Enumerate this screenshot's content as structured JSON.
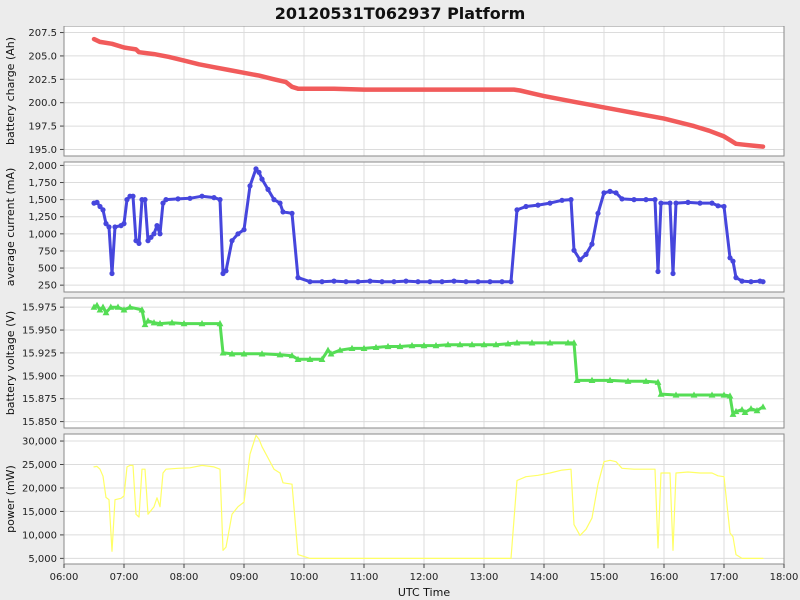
{
  "title": "20120531T062937 Platform",
  "figure": {
    "bg": "#ececec",
    "plot_bg": "#ffffff",
    "grid_color": "#dcdcdc",
    "border_color": "#8a8a8a",
    "tick_color": "#444444"
  },
  "x_axis": {
    "label": "UTC Time",
    "range": [
      6,
      18
    ],
    "tick_values": [
      6,
      7,
      8,
      9,
      10,
      11,
      12,
      13,
      14,
      15,
      16,
      17,
      18
    ],
    "tick_labels": [
      "06:00",
      "07:00",
      "08:00",
      "09:00",
      "10:00",
      "11:00",
      "12:00",
      "13:00",
      "14:00",
      "15:00",
      "16:00",
      "17:00",
      "18:00"
    ]
  },
  "chart_data": [
    {
      "type": "line",
      "name": "battery-charge",
      "ylabel": "battery charge (Ah)",
      "color": "#f15b5b",
      "line_width": 4.5,
      "marker": "none",
      "ylim": [
        194.3,
        208.2
      ],
      "ytick_values": [
        195.0,
        197.5,
        200.0,
        202.5,
        205.0,
        207.5
      ],
      "ytick_labels": [
        "195.0",
        "197.5",
        "200.0",
        "202.5",
        "205.0",
        "207.5"
      ],
      "points": [
        [
          6.5,
          206.8
        ],
        [
          6.6,
          206.5
        ],
        [
          6.8,
          206.3
        ],
        [
          7.0,
          205.9
        ],
        [
          7.2,
          205.7
        ],
        [
          7.25,
          205.4
        ],
        [
          7.5,
          205.2
        ],
        [
          7.75,
          204.9
        ],
        [
          8.0,
          204.5
        ],
        [
          8.25,
          204.1
        ],
        [
          8.5,
          203.8
        ],
        [
          8.75,
          203.5
        ],
        [
          9.0,
          203.2
        ],
        [
          9.25,
          202.9
        ],
        [
          9.5,
          202.5
        ],
        [
          9.7,
          202.2
        ],
        [
          9.8,
          201.7
        ],
        [
          9.9,
          201.5
        ],
        [
          10.0,
          201.5
        ],
        [
          10.5,
          201.5
        ],
        [
          11.0,
          201.4
        ],
        [
          11.5,
          201.4
        ],
        [
          12.0,
          201.4
        ],
        [
          12.5,
          201.4
        ],
        [
          13.0,
          201.4
        ],
        [
          13.5,
          201.4
        ],
        [
          13.6,
          201.3
        ],
        [
          13.8,
          201.0
        ],
        [
          14.0,
          200.7
        ],
        [
          14.25,
          200.4
        ],
        [
          14.5,
          200.1
        ],
        [
          14.75,
          199.8
        ],
        [
          15.0,
          199.5
        ],
        [
          15.25,
          199.2
        ],
        [
          15.5,
          198.9
        ],
        [
          15.75,
          198.6
        ],
        [
          16.0,
          198.3
        ],
        [
          16.25,
          197.9
        ],
        [
          16.5,
          197.5
        ],
        [
          16.75,
          197.0
        ],
        [
          17.0,
          196.4
        ],
        [
          17.1,
          196.0
        ],
        [
          17.2,
          195.6
        ],
        [
          17.35,
          195.5
        ],
        [
          17.5,
          195.4
        ],
        [
          17.65,
          195.3
        ]
      ]
    },
    {
      "type": "line",
      "name": "average-current",
      "ylabel": "average current (mA)",
      "color": "#4646dd",
      "line_width": 3,
      "marker": "circle",
      "ylim": [
        150,
        2050
      ],
      "ytick_values": [
        250,
        500,
        750,
        1000,
        1250,
        1500,
        1750,
        2000
      ],
      "ytick_labels": [
        "250",
        "500",
        "750",
        "1,000",
        "1,250",
        "1,500",
        "1,750",
        "2,000"
      ],
      "points": [
        [
          6.5,
          1450
        ],
        [
          6.55,
          1460
        ],
        [
          6.6,
          1400
        ],
        [
          6.65,
          1350
        ],
        [
          6.7,
          1150
        ],
        [
          6.75,
          1100
        ],
        [
          6.8,
          420
        ],
        [
          6.85,
          1100
        ],
        [
          6.95,
          1120
        ],
        [
          7.0,
          1150
        ],
        [
          7.05,
          1500
        ],
        [
          7.1,
          1550
        ],
        [
          7.15,
          1550
        ],
        [
          7.2,
          900
        ],
        [
          7.25,
          860
        ],
        [
          7.3,
          1500
        ],
        [
          7.35,
          1500
        ],
        [
          7.4,
          900
        ],
        [
          7.45,
          950
        ],
        [
          7.5,
          1000
        ],
        [
          7.55,
          1120
        ],
        [
          7.6,
          1000
        ],
        [
          7.65,
          1450
        ],
        [
          7.7,
          1500
        ],
        [
          7.9,
          1510
        ],
        [
          8.1,
          1520
        ],
        [
          8.3,
          1550
        ],
        [
          8.5,
          1530
        ],
        [
          8.6,
          1500
        ],
        [
          8.65,
          420
        ],
        [
          8.7,
          460
        ],
        [
          8.8,
          900
        ],
        [
          8.9,
          1000
        ],
        [
          9.0,
          1060
        ],
        [
          9.1,
          1700
        ],
        [
          9.2,
          1950
        ],
        [
          9.25,
          1900
        ],
        [
          9.3,
          1800
        ],
        [
          9.4,
          1650
        ],
        [
          9.5,
          1500
        ],
        [
          9.6,
          1450
        ],
        [
          9.65,
          1320
        ],
        [
          9.8,
          1300
        ],
        [
          9.9,
          360
        ],
        [
          10.1,
          300
        ],
        [
          10.3,
          300
        ],
        [
          10.5,
          310
        ],
        [
          10.7,
          300
        ],
        [
          10.9,
          300
        ],
        [
          11.1,
          310
        ],
        [
          11.3,
          300
        ],
        [
          11.5,
          300
        ],
        [
          11.7,
          310
        ],
        [
          11.9,
          300
        ],
        [
          12.1,
          300
        ],
        [
          12.3,
          300
        ],
        [
          12.5,
          310
        ],
        [
          12.7,
          300
        ],
        [
          12.9,
          300
        ],
        [
          13.1,
          300
        ],
        [
          13.3,
          300
        ],
        [
          13.45,
          300
        ],
        [
          13.55,
          1350
        ],
        [
          13.7,
          1400
        ],
        [
          13.9,
          1420
        ],
        [
          14.1,
          1450
        ],
        [
          14.3,
          1490
        ],
        [
          14.45,
          1500
        ],
        [
          14.5,
          760
        ],
        [
          14.6,
          620
        ],
        [
          14.7,
          700
        ],
        [
          14.8,
          850
        ],
        [
          14.9,
          1300
        ],
        [
          15.0,
          1600
        ],
        [
          15.1,
          1620
        ],
        [
          15.2,
          1600
        ],
        [
          15.3,
          1510
        ],
        [
          15.5,
          1500
        ],
        [
          15.7,
          1500
        ],
        [
          15.85,
          1500
        ],
        [
          15.9,
          450
        ],
        [
          15.95,
          1450
        ],
        [
          16.1,
          1450
        ],
        [
          16.15,
          420
        ],
        [
          16.2,
          1450
        ],
        [
          16.4,
          1460
        ],
        [
          16.6,
          1450
        ],
        [
          16.8,
          1450
        ],
        [
          16.9,
          1410
        ],
        [
          17.0,
          1400
        ],
        [
          17.1,
          650
        ],
        [
          17.15,
          600
        ],
        [
          17.2,
          360
        ],
        [
          17.3,
          310
        ],
        [
          17.45,
          300
        ],
        [
          17.6,
          310
        ],
        [
          17.65,
          300
        ]
      ]
    },
    {
      "type": "line",
      "name": "battery-voltage",
      "ylabel": "battery voltage (V)",
      "color": "#55dd55",
      "line_width": 3,
      "marker": "triangle",
      "ylim": [
        15.843,
        15.985
      ],
      "ytick_values": [
        15.85,
        15.875,
        15.9,
        15.925,
        15.95,
        15.975
      ],
      "ytick_labels": [
        "15.850",
        "15.875",
        "15.900",
        "15.925",
        "15.950",
        "15.975"
      ],
      "points": [
        [
          6.5,
          15.975
        ],
        [
          6.55,
          15.977
        ],
        [
          6.6,
          15.972
        ],
        [
          6.65,
          15.975
        ],
        [
          6.7,
          15.969
        ],
        [
          6.78,
          15.975
        ],
        [
          6.9,
          15.975
        ],
        [
          7.0,
          15.972
        ],
        [
          7.1,
          15.975
        ],
        [
          7.3,
          15.972
        ],
        [
          7.35,
          15.956
        ],
        [
          7.4,
          15.96
        ],
        [
          7.5,
          15.958
        ],
        [
          7.6,
          15.957
        ],
        [
          7.8,
          15.958
        ],
        [
          8.0,
          15.957
        ],
        [
          8.3,
          15.957
        ],
        [
          8.6,
          15.957
        ],
        [
          8.65,
          15.925
        ],
        [
          8.8,
          15.924
        ],
        [
          9.0,
          15.924
        ],
        [
          9.3,
          15.924
        ],
        [
          9.6,
          15.923
        ],
        [
          9.8,
          15.922
        ],
        [
          9.9,
          15.918
        ],
        [
          10.1,
          15.918
        ],
        [
          10.3,
          15.918
        ],
        [
          10.4,
          15.928
        ],
        [
          10.45,
          15.924
        ],
        [
          10.6,
          15.928
        ],
        [
          10.8,
          15.93
        ],
        [
          11.0,
          15.93
        ],
        [
          11.2,
          15.931
        ],
        [
          11.4,
          15.932
        ],
        [
          11.6,
          15.932
        ],
        [
          11.8,
          15.933
        ],
        [
          12.0,
          15.933
        ],
        [
          12.2,
          15.933
        ],
        [
          12.4,
          15.934
        ],
        [
          12.6,
          15.934
        ],
        [
          12.8,
          15.934
        ],
        [
          13.0,
          15.934
        ],
        [
          13.2,
          15.934
        ],
        [
          13.4,
          15.935
        ],
        [
          13.55,
          15.936
        ],
        [
          13.8,
          15.936
        ],
        [
          14.1,
          15.936
        ],
        [
          14.4,
          15.936
        ],
        [
          14.5,
          15.936
        ],
        [
          14.55,
          15.895
        ],
        [
          14.8,
          15.895
        ],
        [
          15.1,
          15.895
        ],
        [
          15.4,
          15.894
        ],
        [
          15.7,
          15.894
        ],
        [
          15.9,
          15.893
        ],
        [
          15.95,
          15.88
        ],
        [
          16.2,
          15.879
        ],
        [
          16.5,
          15.879
        ],
        [
          16.8,
          15.879
        ],
        [
          17.0,
          15.879
        ],
        [
          17.1,
          15.878
        ],
        [
          17.15,
          15.858
        ],
        [
          17.2,
          15.861
        ],
        [
          17.3,
          15.863
        ],
        [
          17.35,
          15.86
        ],
        [
          17.45,
          15.864
        ],
        [
          17.55,
          15.862
        ],
        [
          17.65,
          15.866
        ]
      ]
    },
    {
      "type": "line",
      "name": "power",
      "ylabel": "power (mW)",
      "color": "#ffff66",
      "line_width": 1.2,
      "marker": "none",
      "ylim": [
        3800,
        31500
      ],
      "ytick_values": [
        5000,
        10000,
        15000,
        20000,
        25000,
        30000
      ],
      "ytick_labels": [
        "5,000",
        "10,000",
        "15,000",
        "20,000",
        "25,000",
        "30,000"
      ],
      "points": [
        [
          6.5,
          24500
        ],
        [
          6.55,
          24600
        ],
        [
          6.6,
          24000
        ],
        [
          6.65,
          22500
        ],
        [
          6.7,
          18000
        ],
        [
          6.75,
          17500
        ],
        [
          6.8,
          6500
        ],
        [
          6.85,
          17500
        ],
        [
          6.95,
          17800
        ],
        [
          7.0,
          18300
        ],
        [
          7.05,
          24500
        ],
        [
          7.1,
          24800
        ],
        [
          7.15,
          24800
        ],
        [
          7.2,
          14400
        ],
        [
          7.25,
          13800
        ],
        [
          7.3,
          24000
        ],
        [
          7.35,
          24000
        ],
        [
          7.4,
          14400
        ],
        [
          7.45,
          15200
        ],
        [
          7.5,
          16000
        ],
        [
          7.55,
          17900
        ],
        [
          7.6,
          16000
        ],
        [
          7.65,
          23200
        ],
        [
          7.7,
          24000
        ],
        [
          7.9,
          24200
        ],
        [
          8.1,
          24300
        ],
        [
          8.3,
          24800
        ],
        [
          8.5,
          24500
        ],
        [
          8.6,
          24000
        ],
        [
          8.65,
          6700
        ],
        [
          8.7,
          7400
        ],
        [
          8.8,
          14400
        ],
        [
          8.9,
          16000
        ],
        [
          9.0,
          17000
        ],
        [
          9.1,
          27200
        ],
        [
          9.2,
          31200
        ],
        [
          9.25,
          30400
        ],
        [
          9.3,
          28800
        ],
        [
          9.4,
          26400
        ],
        [
          9.5,
          24000
        ],
        [
          9.6,
          23200
        ],
        [
          9.65,
          21100
        ],
        [
          9.8,
          20800
        ],
        [
          9.9,
          5800
        ],
        [
          10.1,
          5000
        ],
        [
          10.4,
          5000
        ],
        [
          10.8,
          5000
        ],
        [
          11.2,
          5000
        ],
        [
          11.6,
          5000
        ],
        [
          12.0,
          5000
        ],
        [
          12.4,
          5000
        ],
        [
          12.8,
          5000
        ],
        [
          13.2,
          5000
        ],
        [
          13.45,
          5000
        ],
        [
          13.55,
          21600
        ],
        [
          13.7,
          22400
        ],
        [
          13.9,
          22700
        ],
        [
          14.1,
          23200
        ],
        [
          14.3,
          23800
        ],
        [
          14.45,
          24000
        ],
        [
          14.5,
          12200
        ],
        [
          14.6,
          9900
        ],
        [
          14.7,
          11200
        ],
        [
          14.8,
          13600
        ],
        [
          14.9,
          20800
        ],
        [
          15.0,
          25600
        ],
        [
          15.1,
          25900
        ],
        [
          15.2,
          25600
        ],
        [
          15.3,
          24200
        ],
        [
          15.5,
          24000
        ],
        [
          15.7,
          24000
        ],
        [
          15.85,
          24000
        ],
        [
          15.9,
          7200
        ],
        [
          15.95,
          23200
        ],
        [
          16.1,
          23200
        ],
        [
          16.15,
          6700
        ],
        [
          16.2,
          23200
        ],
        [
          16.4,
          23400
        ],
        [
          16.6,
          23200
        ],
        [
          16.8,
          23200
        ],
        [
          16.9,
          22600
        ],
        [
          17.0,
          22400
        ],
        [
          17.1,
          10400
        ],
        [
          17.15,
          9600
        ],
        [
          17.2,
          5800
        ],
        [
          17.3,
          5000
        ],
        [
          17.45,
          5000
        ],
        [
          17.6,
          5000
        ],
        [
          17.65,
          5000
        ]
      ]
    }
  ]
}
